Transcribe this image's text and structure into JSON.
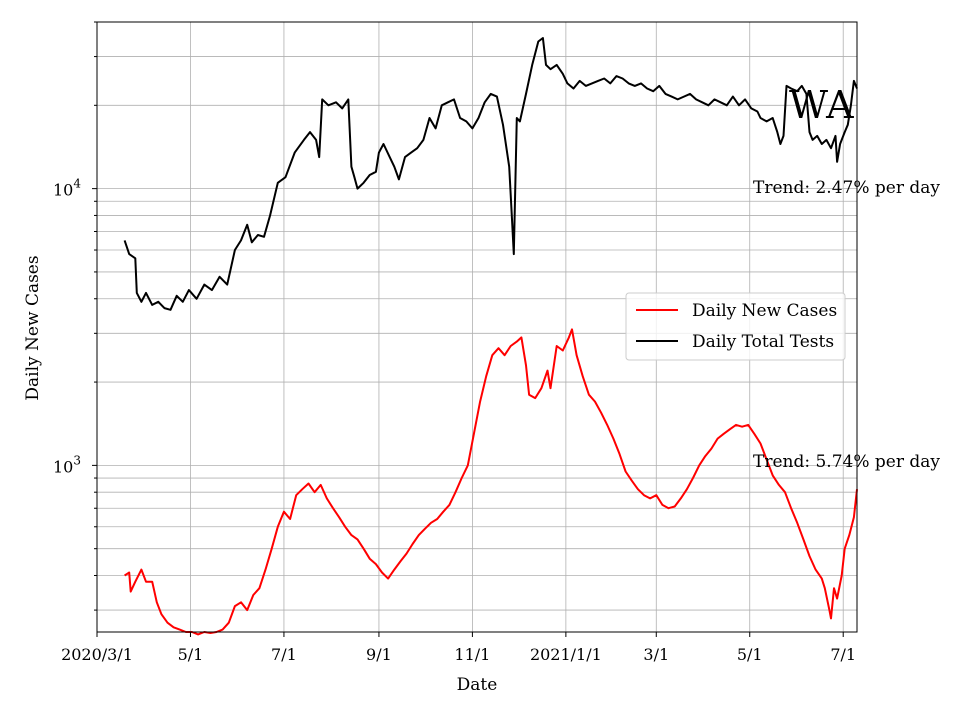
{
  "chart_data": {
    "type": "line",
    "x_axis": {
      "label": "Date",
      "tick_labels": [
        "2020/3/1",
        "5/1",
        "7/1",
        "9/1",
        "11/1",
        "2021/1/1",
        "3/1",
        "5/1",
        "7/1"
      ],
      "tick_dates": [
        "2020-03-01",
        "2020-05-01",
        "2020-07-01",
        "2020-09-01",
        "2020-11-01",
        "2021-01-01",
        "2021-03-01",
        "2021-05-01",
        "2021-07-01"
      ],
      "range": [
        "2020-03-01",
        "2021-07-10"
      ]
    },
    "y_axis": {
      "label": "Daily New Cases",
      "scale": "log",
      "range": [
        250,
        40000
      ],
      "major_ticks": [
        1000,
        10000
      ],
      "major_tick_bases": [
        "10",
        "10"
      ],
      "major_tick_exponents": [
        "3",
        "4"
      ]
    },
    "grid": true,
    "legend": {
      "placement": "center-right",
      "entries": [
        "Daily New Cases",
        "Daily Total Tests"
      ]
    },
    "annotations": {
      "state": "WA",
      "tests_trend": "Trend: 2.47% per day",
      "cases_trend": "Trend: 5.74% per day"
    },
    "series": [
      {
        "name": "Daily Total Tests",
        "color": "#000000",
        "points": [
          [
            "2020-03-19",
            6500
          ],
          [
            "2020-03-22",
            5800
          ],
          [
            "2020-03-26",
            5600
          ],
          [
            "2020-03-27",
            4200
          ],
          [
            "2020-03-30",
            3900
          ],
          [
            "2020-04-02",
            4200
          ],
          [
            "2020-04-06",
            3800
          ],
          [
            "2020-04-10",
            3900
          ],
          [
            "2020-04-14",
            3700
          ],
          [
            "2020-04-18",
            3650
          ],
          [
            "2020-04-22",
            4100
          ],
          [
            "2020-04-26",
            3900
          ],
          [
            "2020-04-30",
            4300
          ],
          [
            "2020-05-05",
            4000
          ],
          [
            "2020-05-10",
            4500
          ],
          [
            "2020-05-15",
            4300
          ],
          [
            "2020-05-20",
            4800
          ],
          [
            "2020-05-25",
            4500
          ],
          [
            "2020-05-30",
            6000
          ],
          [
            "2020-06-03",
            6500
          ],
          [
            "2020-06-07",
            7400
          ],
          [
            "2020-06-10",
            6400
          ],
          [
            "2020-06-14",
            6800
          ],
          [
            "2020-06-18",
            6700
          ],
          [
            "2020-06-22",
            8000
          ],
          [
            "2020-06-27",
            10500
          ],
          [
            "2020-07-02",
            11000
          ],
          [
            "2020-07-08",
            13500
          ],
          [
            "2020-07-14",
            15000
          ],
          [
            "2020-07-18",
            16000
          ],
          [
            "2020-07-22",
            15000
          ],
          [
            "2020-07-24",
            13000
          ],
          [
            "2020-07-26",
            21000
          ],
          [
            "2020-07-30",
            20000
          ],
          [
            "2020-08-04",
            20500
          ],
          [
            "2020-08-08",
            19500
          ],
          [
            "2020-08-12",
            21000
          ],
          [
            "2020-08-14",
            12000
          ],
          [
            "2020-08-16",
            11000
          ],
          [
            "2020-08-18",
            10000
          ],
          [
            "2020-08-22",
            10500
          ],
          [
            "2020-08-26",
            11200
          ],
          [
            "2020-08-30",
            11500
          ],
          [
            "2020-09-01",
            13500
          ],
          [
            "2020-09-04",
            14500
          ],
          [
            "2020-09-08",
            13000
          ],
          [
            "2020-09-11",
            12000
          ],
          [
            "2020-09-14",
            10800
          ],
          [
            "2020-09-18",
            13000
          ],
          [
            "2020-09-22",
            13500
          ],
          [
            "2020-09-26",
            14000
          ],
          [
            "2020-09-30",
            15000
          ],
          [
            "2020-10-04",
            18000
          ],
          [
            "2020-10-08",
            16500
          ],
          [
            "2020-10-12",
            20000
          ],
          [
            "2020-10-16",
            20500
          ],
          [
            "2020-10-20",
            21000
          ],
          [
            "2020-10-24",
            18000
          ],
          [
            "2020-10-28",
            17500
          ],
          [
            "2020-11-01",
            16500
          ],
          [
            "2020-11-05",
            18000
          ],
          [
            "2020-11-09",
            20500
          ],
          [
            "2020-11-13",
            22000
          ],
          [
            "2020-11-17",
            21500
          ],
          [
            "2020-11-21",
            17000
          ],
          [
            "2020-11-25",
            12000
          ],
          [
            "2020-11-27",
            7500
          ],
          [
            "2020-11-28",
            5800
          ],
          [
            "2020-11-30",
            18000
          ],
          [
            "2020-12-02",
            17500
          ],
          [
            "2020-12-06",
            22000
          ],
          [
            "2020-12-10",
            28000
          ],
          [
            "2020-12-14",
            34000
          ],
          [
            "2020-12-17",
            35000
          ],
          [
            "2020-12-19",
            28000
          ],
          [
            "2020-12-22",
            27000
          ],
          [
            "2020-12-26",
            28000
          ],
          [
            "2020-12-30",
            26000
          ],
          [
            "2021-01-02",
            24000
          ],
          [
            "2021-01-06",
            23000
          ],
          [
            "2021-01-10",
            24500
          ],
          [
            "2021-01-14",
            23500
          ],
          [
            "2021-01-18",
            24000
          ],
          [
            "2021-01-22",
            24500
          ],
          [
            "2021-01-26",
            25000
          ],
          [
            "2021-01-30",
            24000
          ],
          [
            "2021-02-03",
            25500
          ],
          [
            "2021-02-07",
            25000
          ],
          [
            "2021-02-11",
            24000
          ],
          [
            "2021-02-15",
            23500
          ],
          [
            "2021-02-19",
            24000
          ],
          [
            "2021-02-23",
            23000
          ],
          [
            "2021-02-27",
            22500
          ],
          [
            "2021-03-03",
            23500
          ],
          [
            "2021-03-07",
            22000
          ],
          [
            "2021-03-11",
            21500
          ],
          [
            "2021-03-15",
            21000
          ],
          [
            "2021-03-19",
            21500
          ],
          [
            "2021-03-23",
            22000
          ],
          [
            "2021-03-27",
            21000
          ],
          [
            "2021-03-31",
            20500
          ],
          [
            "2021-04-04",
            20000
          ],
          [
            "2021-04-08",
            21000
          ],
          [
            "2021-04-12",
            20500
          ],
          [
            "2021-04-16",
            20000
          ],
          [
            "2021-04-20",
            21500
          ],
          [
            "2021-04-24",
            20000
          ],
          [
            "2021-04-28",
            21000
          ],
          [
            "2021-05-02",
            19500
          ],
          [
            "2021-05-06",
            19000
          ],
          [
            "2021-05-08",
            18000
          ],
          [
            "2021-05-12",
            17500
          ],
          [
            "2021-05-16",
            18000
          ],
          [
            "2021-05-19",
            16000
          ],
          [
            "2021-05-21",
            14500
          ],
          [
            "2021-05-23",
            15500
          ],
          [
            "2021-05-25",
            23500
          ],
          [
            "2021-05-28",
            23000
          ],
          [
            "2021-06-01",
            22500
          ],
          [
            "2021-06-04",
            23500
          ],
          [
            "2021-06-07",
            22000
          ],
          [
            "2021-06-09",
            16000
          ],
          [
            "2021-06-11",
            15000
          ],
          [
            "2021-06-14",
            15500
          ],
          [
            "2021-06-17",
            14500
          ],
          [
            "2021-06-20",
            15000
          ],
          [
            "2021-06-23",
            14000
          ],
          [
            "2021-06-26",
            15500
          ],
          [
            "2021-06-27",
            12500
          ],
          [
            "2021-06-29",
            14500
          ],
          [
            "2021-07-02",
            16000
          ],
          [
            "2021-07-04",
            17000
          ],
          [
            "2021-07-06",
            20000
          ],
          [
            "2021-07-08",
            24500
          ],
          [
            "2021-07-10",
            23000
          ]
        ]
      },
      {
        "name": "Daily New Cases",
        "color": "#ff0000",
        "points": [
          [
            "2020-03-19",
            400
          ],
          [
            "2020-03-22",
            410
          ],
          [
            "2020-03-23",
            350
          ],
          [
            "2020-03-26",
            380
          ],
          [
            "2020-03-30",
            420
          ],
          [
            "2020-04-02",
            380
          ],
          [
            "2020-04-06",
            380
          ],
          [
            "2020-04-09",
            320
          ],
          [
            "2020-04-12",
            290
          ],
          [
            "2020-04-16",
            270
          ],
          [
            "2020-04-20",
            260
          ],
          [
            "2020-04-24",
            255
          ],
          [
            "2020-04-28",
            250
          ],
          [
            "2020-05-02",
            250
          ],
          [
            "2020-05-06",
            245
          ],
          [
            "2020-05-10",
            250
          ],
          [
            "2020-05-14",
            248
          ],
          [
            "2020-05-18",
            250
          ],
          [
            "2020-05-22",
            255
          ],
          [
            "2020-05-26",
            270
          ],
          [
            "2020-05-30",
            310
          ],
          [
            "2020-06-03",
            320
          ],
          [
            "2020-06-07",
            300
          ],
          [
            "2020-06-11",
            340
          ],
          [
            "2020-06-15",
            360
          ],
          [
            "2020-06-19",
            420
          ],
          [
            "2020-06-23",
            500
          ],
          [
            "2020-06-27",
            600
          ],
          [
            "2020-07-01",
            680
          ],
          [
            "2020-07-05",
            640
          ],
          [
            "2020-07-09",
            780
          ],
          [
            "2020-07-13",
            820
          ],
          [
            "2020-07-17",
            860
          ],
          [
            "2020-07-21",
            800
          ],
          [
            "2020-07-25",
            850
          ],
          [
            "2020-07-29",
            760
          ],
          [
            "2020-08-02",
            700
          ],
          [
            "2020-08-06",
            650
          ],
          [
            "2020-08-10",
            600
          ],
          [
            "2020-08-14",
            560
          ],
          [
            "2020-08-18",
            540
          ],
          [
            "2020-08-22",
            500
          ],
          [
            "2020-08-26",
            460
          ],
          [
            "2020-08-30",
            440
          ],
          [
            "2020-09-03",
            410
          ],
          [
            "2020-09-07",
            390
          ],
          [
            "2020-09-11",
            420
          ],
          [
            "2020-09-15",
            450
          ],
          [
            "2020-09-19",
            480
          ],
          [
            "2020-09-23",
            520
          ],
          [
            "2020-09-27",
            560
          ],
          [
            "2020-10-01",
            590
          ],
          [
            "2020-10-05",
            620
          ],
          [
            "2020-10-09",
            640
          ],
          [
            "2020-10-13",
            680
          ],
          [
            "2020-10-17",
            720
          ],
          [
            "2020-10-21",
            800
          ],
          [
            "2020-10-25",
            900
          ],
          [
            "2020-10-29",
            1000
          ],
          [
            "2020-11-02",
            1300
          ],
          [
            "2020-11-06",
            1700
          ],
          [
            "2020-11-10",
            2100
          ],
          [
            "2020-11-14",
            2500
          ],
          [
            "2020-11-18",
            2650
          ],
          [
            "2020-11-22",
            2500
          ],
          [
            "2020-11-26",
            2700
          ],
          [
            "2020-11-30",
            2800
          ],
          [
            "2020-12-03",
            2900
          ],
          [
            "2020-12-06",
            2300
          ],
          [
            "2020-12-08",
            1800
          ],
          [
            "2020-12-12",
            1750
          ],
          [
            "2020-12-16",
            1900
          ],
          [
            "2020-12-20",
            2200
          ],
          [
            "2020-12-22",
            1900
          ],
          [
            "2020-12-26",
            2700
          ],
          [
            "2020-12-30",
            2600
          ],
          [
            "2021-01-03",
            2900
          ],
          [
            "2021-01-05",
            3100
          ],
          [
            "2021-01-08",
            2500
          ],
          [
            "2021-01-12",
            2100
          ],
          [
            "2021-01-16",
            1800
          ],
          [
            "2021-01-20",
            1700
          ],
          [
            "2021-01-24",
            1550
          ],
          [
            "2021-01-28",
            1400
          ],
          [
            "2021-02-01",
            1250
          ],
          [
            "2021-02-05",
            1100
          ],
          [
            "2021-02-09",
            950
          ],
          [
            "2021-02-13",
            880
          ],
          [
            "2021-02-17",
            820
          ],
          [
            "2021-02-21",
            780
          ],
          [
            "2021-02-25",
            760
          ],
          [
            "2021-03-01",
            780
          ],
          [
            "2021-03-05",
            720
          ],
          [
            "2021-03-09",
            700
          ],
          [
            "2021-03-13",
            710
          ],
          [
            "2021-03-17",
            760
          ],
          [
            "2021-03-21",
            820
          ],
          [
            "2021-03-25",
            900
          ],
          [
            "2021-03-29",
            1000
          ],
          [
            "2021-04-02",
            1080
          ],
          [
            "2021-04-06",
            1150
          ],
          [
            "2021-04-10",
            1250
          ],
          [
            "2021-04-14",
            1300
          ],
          [
            "2021-04-18",
            1350
          ],
          [
            "2021-04-22",
            1400
          ],
          [
            "2021-04-26",
            1380
          ],
          [
            "2021-04-30",
            1400
          ],
          [
            "2021-05-04",
            1300
          ],
          [
            "2021-05-08",
            1200
          ],
          [
            "2021-05-12",
            1050
          ],
          [
            "2021-05-16",
            920
          ],
          [
            "2021-05-20",
            850
          ],
          [
            "2021-05-24",
            800
          ],
          [
            "2021-05-28",
            700
          ],
          [
            "2021-06-01",
            620
          ],
          [
            "2021-06-05",
            540
          ],
          [
            "2021-06-09",
            470
          ],
          [
            "2021-06-13",
            420
          ],
          [
            "2021-06-17",
            390
          ],
          [
            "2021-06-19",
            360
          ],
          [
            "2021-06-22",
            300
          ],
          [
            "2021-06-23",
            280
          ],
          [
            "2021-06-25",
            360
          ],
          [
            "2021-06-27",
            330
          ],
          [
            "2021-06-30",
            400
          ],
          [
            "2021-07-02",
            500
          ],
          [
            "2021-07-05",
            560
          ],
          [
            "2021-07-08",
            650
          ],
          [
            "2021-07-10",
            820
          ]
        ]
      }
    ]
  }
}
